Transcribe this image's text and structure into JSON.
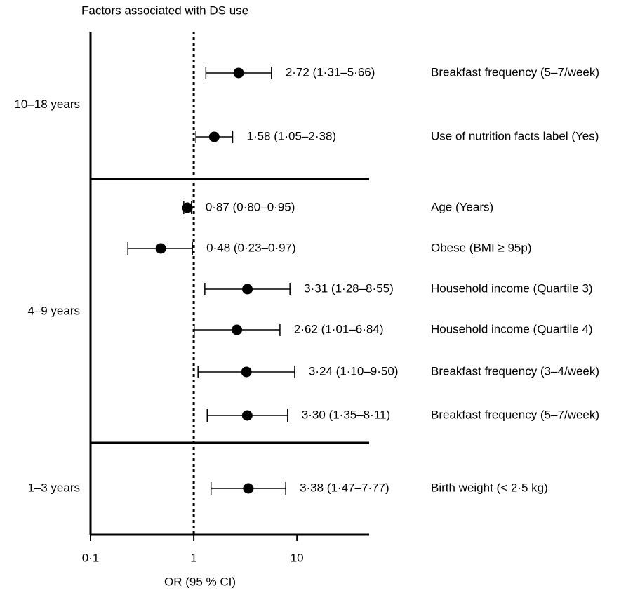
{
  "chart_data": {
    "type": "forest",
    "title": "Factors associated with DS use",
    "x_label": "OR (95 % CI)",
    "log_x": true,
    "xlim": [
      0.1,
      50
    ],
    "xticks": [
      {
        "value": 0.1,
        "label": "0·1"
      },
      1,
      10
    ],
    "color": "#000000",
    "groups": [
      {
        "name": "10–18 years",
        "categories": [
          "Breakfast frequency (5–7/week)",
          "Use of nutrition facts label (Yes)"
        ],
        "values": [
          2.72,
          1.58
        ],
        "lower": [
          1.31,
          1.05
        ],
        "upper": [
          5.66,
          2.38
        ],
        "value_labels": [
          "2·72 (1·31–5·66)",
          "1·58 (1·05–2·38)"
        ]
      },
      {
        "name": "4–9 years",
        "categories": [
          "Age (Years)",
          "Obese (BMI ≥ 95p)",
          "Household income (Quartile 3)",
          "Household income (Quartile 4)",
          "Breakfast frequency (3–4/week)",
          "Breakfast frequency (5–7/week)"
        ],
        "values": [
          0.87,
          0.48,
          3.31,
          2.62,
          3.24,
          3.3
        ],
        "lower": [
          0.8,
          0.23,
          1.28,
          1.01,
          1.1,
          1.35
        ],
        "upper": [
          0.95,
          0.97,
          8.55,
          6.84,
          9.5,
          8.11
        ],
        "value_labels": [
          "0·87 (0·80–0·95)",
          "0·48 (0·23–0·97)",
          "3·31 (1·28–8·55)",
          "2·62 (1·01–6·84)",
          "3·24 (1·10–9·50)",
          "3·30 (1·35–8·11)"
        ]
      },
      {
        "name": "1–3 years",
        "categories": [
          "Birth weight (< 2·5 kg)"
        ],
        "values": [
          3.38
        ],
        "lower": [
          1.47
        ],
        "upper": [
          7.77
        ],
        "value_labels": [
          "3·38 (1·47–7·77)"
        ]
      }
    ]
  }
}
